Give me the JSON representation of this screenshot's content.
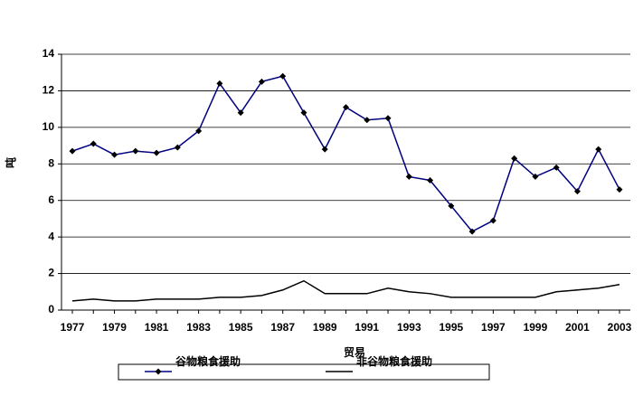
{
  "chart_data": {
    "type": "line",
    "x_label": "贸易",
    "y_label": "吨",
    "categories": [
      "1977",
      null,
      "1979",
      null,
      "1981",
      null,
      "1983",
      null,
      "1985",
      null,
      "1987",
      null,
      "1989",
      null,
      "1991",
      null,
      "1993",
      null,
      "1995",
      null,
      "1997",
      null,
      "1999",
      null,
      "2001",
      null,
      "2003"
    ],
    "series": [
      {
        "name": "谷物粮食援助",
        "color": "#000080",
        "marker": "diamond",
        "values": [
          8.7,
          9.1,
          8.5,
          8.7,
          8.6,
          8.9,
          9.8,
          12.4,
          10.8,
          12.5,
          12.8,
          10.8,
          8.8,
          11.1,
          10.4,
          10.5,
          7.3,
          7.1,
          5.7,
          4.3,
          4.9,
          8.3,
          7.3,
          7.8,
          6.5,
          8.8,
          6.6
        ]
      },
      {
        "name": "非谷物粮食援助",
        "color": "#000000",
        "marker": "none",
        "values": [
          0.5,
          0.6,
          0.5,
          0.5,
          0.6,
          0.6,
          0.6,
          0.7,
          0.7,
          0.8,
          1.1,
          1.6,
          0.9,
          0.9,
          0.9,
          1.2,
          1.0,
          0.9,
          0.7,
          0.7,
          0.7,
          0.7,
          0.7,
          1.0,
          1.1,
          1.2,
          1.4
        ]
      }
    ],
    "ylim": [
      0,
      14
    ],
    "yticks": [
      0,
      2,
      4,
      6,
      8,
      10,
      12,
      14
    ],
    "grid": true,
    "legend": "bottom"
  }
}
